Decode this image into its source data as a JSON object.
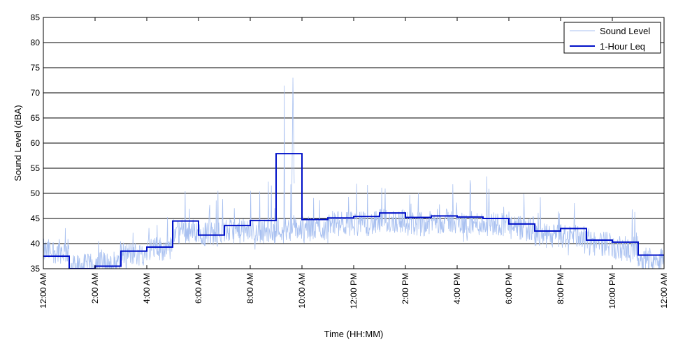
{
  "chart_data": {
    "type": "line",
    "xlabel": "Time (HH:MM)",
    "ylabel": "Sound Level (dBA)",
    "ylim": [
      35,
      85
    ],
    "yticks": [
      35,
      40,
      45,
      50,
      55,
      60,
      65,
      70,
      75,
      80,
      85
    ],
    "xlim_hours": [
      0,
      24
    ],
    "xticks": [
      {
        "hour": 0,
        "label": "12:00 AM"
      },
      {
        "hour": 2,
        "label": "2:00 AM"
      },
      {
        "hour": 4,
        "label": "4:00 AM"
      },
      {
        "hour": 6,
        "label": "6:00 AM"
      },
      {
        "hour": 8,
        "label": "8:00 AM"
      },
      {
        "hour": 10,
        "label": "10:00 AM"
      },
      {
        "hour": 12,
        "label": "12:00 PM"
      },
      {
        "hour": 14,
        "label": "2:00 PM"
      },
      {
        "hour": 16,
        "label": "4:00 PM"
      },
      {
        "hour": 18,
        "label": "6:00 PM"
      },
      {
        "hour": 20,
        "label": "8:00 PM"
      },
      {
        "hour": 22,
        "label": "10:00 PM"
      },
      {
        "hour": 24,
        "label": "12:00 AM"
      }
    ],
    "grid": "horizontal",
    "legend_position": "top-right",
    "series": [
      {
        "name": "Sound Level",
        "color": "#a8c0f0",
        "style": "noisy-continuous",
        "hourly_base": [
          38.5,
          35.5,
          36,
          38,
          39,
          42.5,
          42,
          42.5,
          42.5,
          43,
          43,
          44,
          44,
          44.5,
          44,
          44.5,
          44,
          44,
          43,
          41.5,
          41.5,
          40,
          39,
          37
        ],
        "hourly_peak": [
          46,
          37,
          41,
          44,
          46,
          51,
          51,
          49,
          53,
          73,
          52,
          51,
          52,
          52,
          52,
          52,
          54,
          54,
          50,
          50,
          49,
          47,
          47,
          42
        ]
      },
      {
        "name": "1-Hour Leq",
        "color": "#0010c8",
        "style": "step",
        "values": [
          37.5,
          35.0,
          35.5,
          38.5,
          39.3,
          44.5,
          41.7,
          43.6,
          44.6,
          57.9,
          44.8,
          45.1,
          45.4,
          46.1,
          45.2,
          45.5,
          45.3,
          45.0,
          43.9,
          42.5,
          43.0,
          40.7,
          40.3,
          37.7
        ]
      }
    ]
  }
}
